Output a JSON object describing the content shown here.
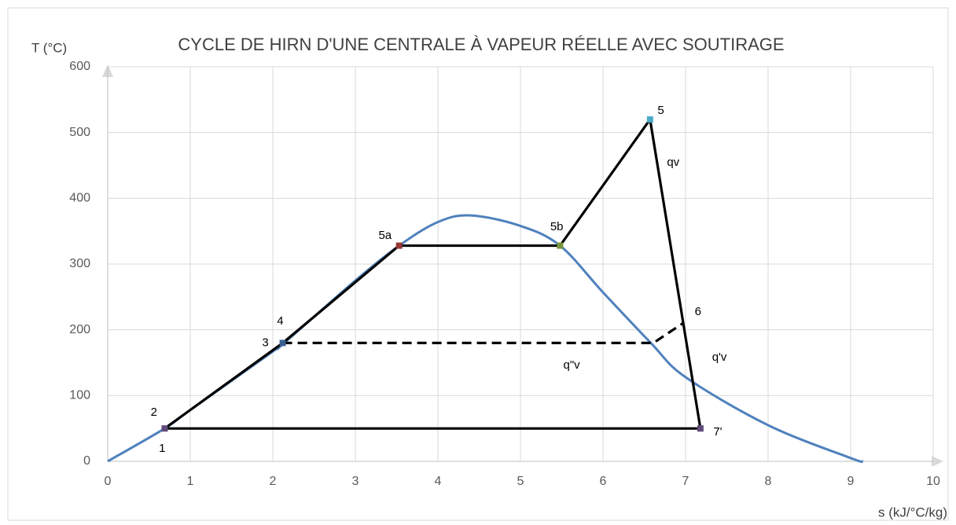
{
  "chart_data": {
    "type": "line",
    "title": "CYCLE DE HIRN D'UNE CENTRALE À VAPEUR RÉELLE AVEC SOUTIRAGE",
    "y_label": "T (°C)",
    "x_label": "s (kJ/°C/kg)",
    "xlim": [
      0,
      10
    ],
    "xticks": [
      0,
      1,
      2,
      3,
      4,
      5,
      6,
      7,
      8,
      9,
      10
    ],
    "ylim": [
      0,
      600
    ],
    "yticks": [
      0,
      100,
      200,
      300,
      400,
      500,
      600
    ],
    "grid": true,
    "series": [
      {
        "color": "#4f81bd",
        "smooth": true,
        "dash": false,
        "x": [
          0,
          0.69,
          1,
          2,
          2.12,
          3,
          3.53,
          4,
          4.4,
          5,
          5.48,
          6,
          6.58,
          7,
          8,
          9,
          9.15
        ],
        "values": [
          0,
          50,
          78,
          167,
          178,
          275,
          328,
          364,
          374,
          358,
          328,
          257,
          180,
          128,
          55,
          5,
          0
        ]
      },
      {
        "color": "#000000",
        "smooth": false,
        "dash": false,
        "x": [
          0.69,
          2.12,
          3.53,
          5.48,
          6.57,
          7.18,
          0.69
        ],
        "values": [
          50,
          180,
          328,
          328,
          520,
          50,
          50
        ]
      },
      {
        "color": "#000000",
        "smooth": false,
        "dash": true,
        "x": [
          2.12,
          6.61,
          6.98
        ],
        "values": [
          180,
          180,
          211
        ]
      }
    ],
    "points": {
      "x": [
        0.69,
        2.12,
        3.53,
        5.48,
        6.57,
        7.18
      ],
      "values": [
        50,
        180,
        328,
        328,
        520,
        50
      ],
      "colors": [
        "#604a7b",
        "#376092",
        "#953735",
        "#77933c",
        "#4bacc6",
        "#604a7b"
      ]
    },
    "annotations": [
      {
        "text": "2",
        "x": 0.56,
        "y": 74
      },
      {
        "text": "1",
        "x": 0.66,
        "y": 19
      },
      {
        "text": "4",
        "x": 2.09,
        "y": 213
      },
      {
        "text": "3",
        "x": 1.91,
        "y": 180
      },
      {
        "text": "5a",
        "x": 3.36,
        "y": 343
      },
      {
        "text": "5b",
        "x": 5.44,
        "y": 356
      },
      {
        "text": "5",
        "x": 6.7,
        "y": 533
      },
      {
        "text": "qv",
        "x": 6.85,
        "y": 454
      },
      {
        "text": "6",
        "x": 7.15,
        "y": 227
      },
      {
        "text": "q'v",
        "x": 7.41,
        "y": 158
      },
      {
        "text": "q\"v",
        "x": 5.62,
        "y": 146
      },
      {
        "text": "7'",
        "x": 7.39,
        "y": 44
      }
    ]
  }
}
